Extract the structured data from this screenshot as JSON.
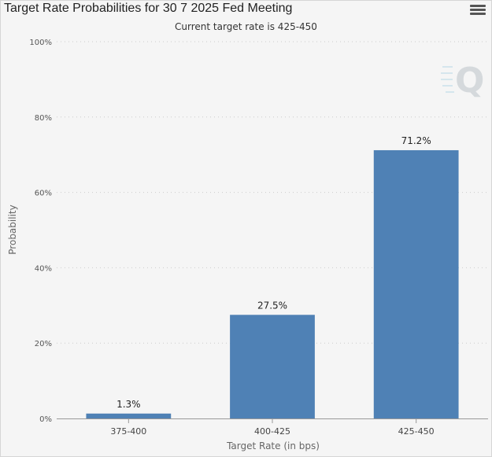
{
  "header": {
    "title": "Target Rate Probabilities for 30 7 2025 Fed Meeting",
    "subtitle": "Current target rate is 425-450",
    "menu_icon": "hamburger-menu-icon"
  },
  "watermark_icon": "q-logo-watermark",
  "colors": {
    "bar": "#4f81b5",
    "grid": "#cccccc",
    "axis": "#999999"
  },
  "chart_data": {
    "type": "bar",
    "title": "Target Rate Probabilities for 30 7 2025 Fed Meeting",
    "subtitle": "Current target rate is 425-450",
    "xlabel": "Target Rate (in bps)",
    "ylabel": "Probability",
    "categories": [
      "375-400",
      "400-425",
      "425-450"
    ],
    "values": [
      1.3,
      27.5,
      71.2
    ],
    "data_labels": [
      "1.3%",
      "27.5%",
      "71.2%"
    ],
    "ylim": [
      0,
      100
    ],
    "yticks": [
      "0%",
      "20%",
      "40%",
      "60%",
      "80%",
      "100%"
    ],
    "grid": true,
    "grid_style": "dotted",
    "legend": "none"
  }
}
